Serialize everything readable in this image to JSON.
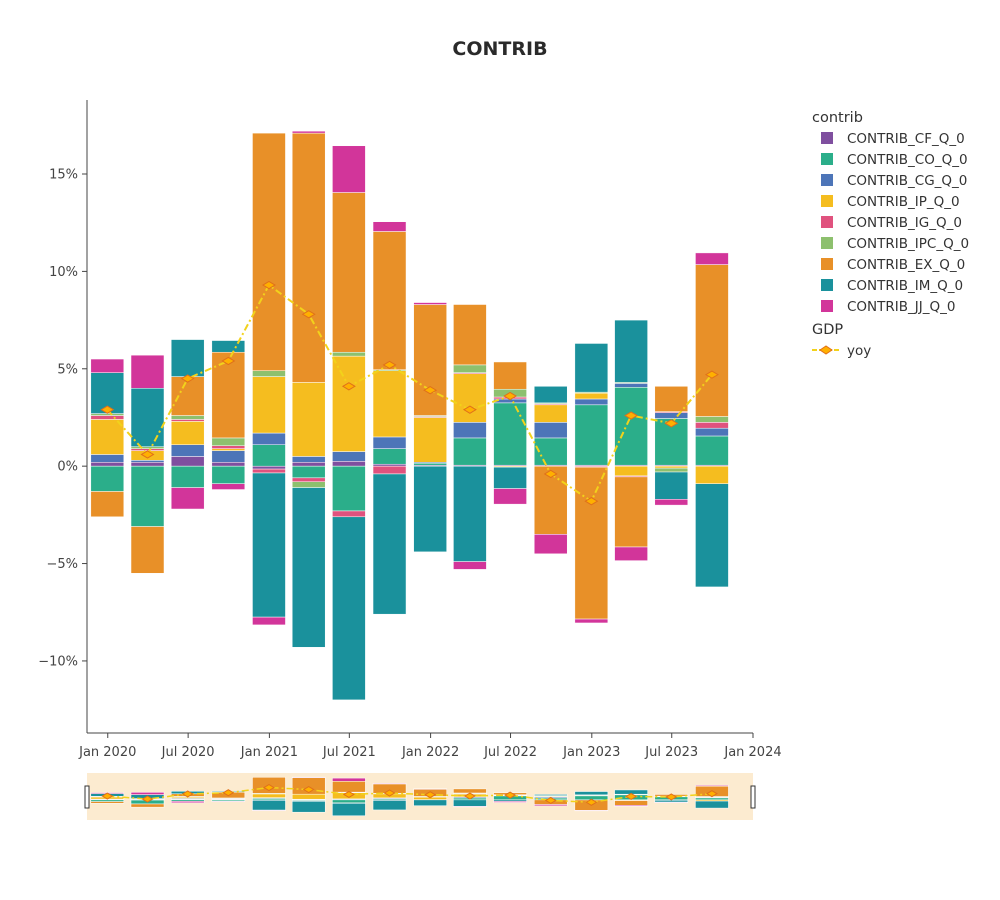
{
  "chart_data": {
    "type": "bar",
    "stacked": "relative",
    "title": "CONTRIB",
    "xlabel": "",
    "ylabel": "",
    "x": [
      "2019-12-31",
      "2020-03-31",
      "2020-06-30",
      "2020-09-30",
      "2020-12-31",
      "2021-03-31",
      "2021-06-30",
      "2021-09-30",
      "2021-12-31",
      "2022-03-31",
      "2022-06-30",
      "2022-09-30",
      "2022-12-31",
      "2023-03-31",
      "2023-06-30",
      "2023-09-30"
    ],
    "x_ticks": [
      "Jan 2020",
      "Jul 2020",
      "Jan 2021",
      "Jul 2021",
      "Jan 2022",
      "Jul 2022",
      "Jan 2023",
      "Jul 2023",
      "Jan 2024"
    ],
    "x_range": [
      "2019-11-15",
      "2024-01-01"
    ],
    "y_range": [
      -13.7,
      18.8
    ],
    "y_ticks": [
      "15%",
      "10%",
      "5%",
      "0%",
      "−5%",
      "−10%"
    ],
    "y_tick_values": [
      15,
      10,
      5,
      0,
      -5,
      -10
    ],
    "y_unit": "%",
    "legend_position": "right",
    "legend_groups": [
      {
        "title": "contrib",
        "items": [
          "CONTRIB_CF_Q_0",
          "CONTRIB_CO_Q_0",
          "CONTRIB_CG_Q_0",
          "CONTRIB_IP_Q_0",
          "CONTRIB_IG_Q_0",
          "CONTRIB_IPC_Q_0",
          "CONTRIB_EX_Q_0",
          "CONTRIB_IM_Q_0",
          "CONTRIB_JJ_Q_0"
        ]
      },
      {
        "title": "GDP",
        "items": [
          "yoy"
        ]
      }
    ],
    "series": [
      {
        "name": "CONTRIB_CF_Q_0",
        "color": "#7F4F9F",
        "values": [
          0.2,
          0.2,
          0.5,
          0.2,
          -0.15,
          0.2,
          0.25,
          0.1,
          0.05,
          0.05,
          0.05,
          0.05,
          0.05,
          0.05,
          0.05,
          0.05
        ]
      },
      {
        "name": "CONTRIB_CO_Q_0",
        "color": "#2BAE8A",
        "values": [
          -1.3,
          -3.1,
          -1.1,
          -0.9,
          1.1,
          -0.6,
          -2.3,
          0.8,
          0.1,
          1.4,
          3.2,
          1.4,
          3.1,
          4.0,
          2.4,
          1.5
        ]
      },
      {
        "name": "CONTRIB_CG_Q_0",
        "color": "#4D75B8",
        "values": [
          0.4,
          0.1,
          0.6,
          0.6,
          0.6,
          0.3,
          0.5,
          0.6,
          0.05,
          0.8,
          0.2,
          0.8,
          0.3,
          0.2,
          0.3,
          0.4
        ]
      },
      {
        "name": "CONTRIB_IP_Q_0",
        "color": "#F5BD1F",
        "values": [
          1.8,
          0.5,
          1.2,
          0.1,
          2.9,
          3.8,
          4.9,
          3.4,
          2.3,
          2.5,
          -0.05,
          0.9,
          0.3,
          -0.5,
          -0.1,
          -0.9
        ]
      },
      {
        "name": "CONTRIB_IG_Q_0",
        "color": "#E0527E",
        "values": [
          0.2,
          0.1,
          0.1,
          0.15,
          -0.2,
          -0.2,
          -0.3,
          -0.4,
          0.05,
          0.05,
          0.1,
          0.05,
          -0.05,
          -0.05,
          0.05,
          0.3
        ]
      },
      {
        "name": "CONTRIB_IPC_Q_0",
        "color": "#8DC06E",
        "values": [
          0.1,
          0.1,
          0.2,
          0.4,
          0.3,
          -0.3,
          0.2,
          0.05,
          0.05,
          0.4,
          0.4,
          0.05,
          0.05,
          0.05,
          -0.2,
          0.3
        ]
      },
      {
        "name": "CONTRIB_EX_Q_0",
        "color": "#E89028",
        "values": [
          -1.3,
          -2.4,
          2.0,
          4.4,
          12.2,
          12.8,
          8.2,
          7.1,
          5.7,
          3.1,
          1.4,
          -3.5,
          -7.8,
          -3.6,
          1.3,
          7.8
        ]
      },
      {
        "name": "CONTRIB_IM_Q_0",
        "color": "#1A919C",
        "values": [
          2.1,
          3.0,
          1.9,
          0.6,
          -7.4,
          -8.2,
          -9.4,
          -7.2,
          -4.4,
          -4.9,
          -1.1,
          0.85,
          2.5,
          3.2,
          -1.4,
          -5.3
        ]
      },
      {
        "name": "CONTRIB_JJ_Q_0",
        "color": "#D2359A",
        "values": [
          0.7,
          1.7,
          -1.1,
          -0.3,
          -0.4,
          0.1,
          2.4,
          0.5,
          0.1,
          -0.4,
          -0.8,
          -1.0,
          -0.2,
          -0.7,
          -0.3,
          0.6
        ]
      }
    ],
    "line_series": {
      "name": "yoy",
      "group": "GDP",
      "color": "#F2D21B",
      "marker_color": "#FFB000",
      "marker_line": "#E0701A",
      "values": [
        2.9,
        0.6,
        4.5,
        5.4,
        9.3,
        7.8,
        4.1,
        5.2,
        3.9,
        2.9,
        3.6,
        -0.4,
        -1.8,
        2.6,
        2.2,
        4.7
      ]
    },
    "rangeslider": true
  }
}
